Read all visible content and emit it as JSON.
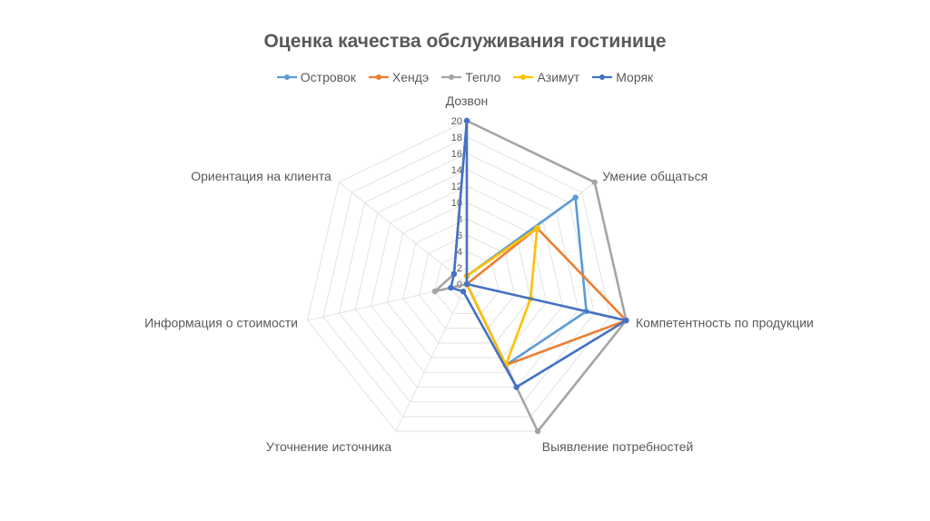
{
  "chart_data": {
    "type": "radar",
    "title": "Оценка качества обслуживания гостинице",
    "categories": [
      "Дозвон",
      "Умение общаться",
      "Компетентность по продукции",
      "Выявление потребностей",
      "Уточнение источника",
      "Информация о стоимости",
      "Ориентация на клиента"
    ],
    "rlim": [
      0,
      20
    ],
    "ticks": [
      "0",
      "2",
      "4",
      "6",
      "8",
      "10",
      "12",
      "14",
      "16",
      "18",
      "20"
    ],
    "grid": true,
    "legend_position": "top",
    "series": [
      {
        "name": "Островок",
        "color": "#5b9bd5",
        "values": [
          1,
          17,
          15,
          11,
          0,
          0,
          0
        ]
      },
      {
        "name": "Хендэ",
        "color": "#ed7d31",
        "values": [
          0,
          11,
          20,
          11,
          0,
          0,
          0
        ]
      },
      {
        "name": "Тепло",
        "color": "#a5a5a5",
        "values": [
          20,
          20,
          20,
          20,
          0,
          4,
          2
        ]
      },
      {
        "name": "Азимут",
        "color": "#ffc000",
        "values": [
          1,
          11,
          8,
          11,
          0,
          0,
          0
        ]
      },
      {
        "name": "Моряк",
        "color": "#4472c4",
        "values": [
          20,
          0,
          20,
          14,
          1,
          2,
          2
        ]
      }
    ]
  }
}
